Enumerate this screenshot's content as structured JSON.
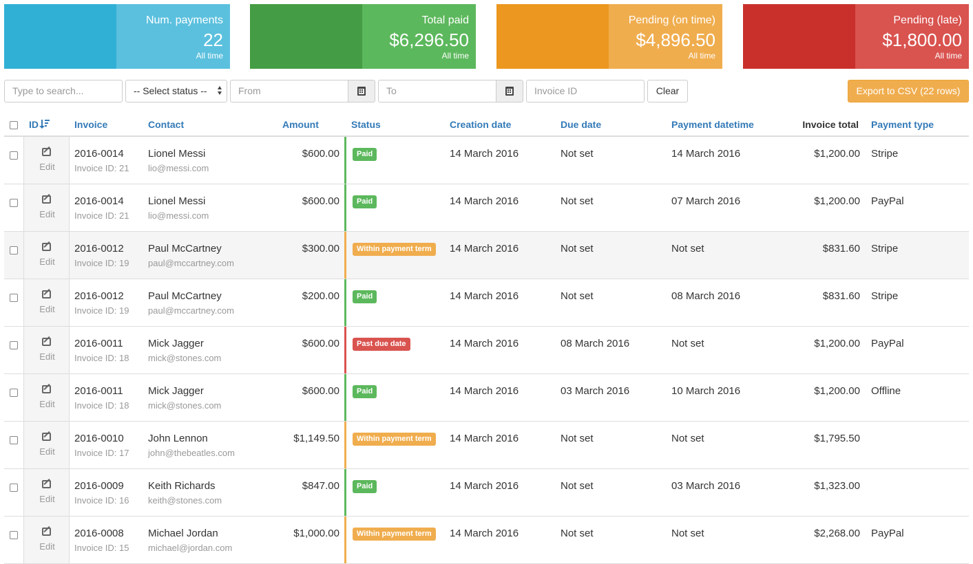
{
  "colors": {
    "blue": "#31b0d5",
    "blue_light": "#5bc0de",
    "green": "#449d44",
    "green_light": "#5cb85c",
    "orange": "#ec971f",
    "orange_light": "#f0ad4e",
    "red": "#c9302c",
    "red_light": "#d9534f"
  },
  "cards": [
    {
      "label": "Num. payments",
      "value": "22",
      "sub": "All time"
    },
    {
      "label": "Total paid",
      "value": "$6,296.50",
      "sub": "All time"
    },
    {
      "label": "Pending (on time)",
      "value": "$4,896.50",
      "sub": "All time"
    },
    {
      "label": "Pending (late)",
      "value": "$1,800.00",
      "sub": "All time"
    }
  ],
  "filters": {
    "search_placeholder": "Type to search...",
    "status_selected": "-- Select status --",
    "from_placeholder": "From",
    "to_placeholder": "To",
    "invoice_id_placeholder": "Invoice ID",
    "clear_label": "Clear",
    "export_label": "Export to CSV (22 rows)"
  },
  "columns": {
    "id": "ID",
    "invoice": "Invoice",
    "contact": "Contact",
    "amount": "Amount",
    "status": "Status",
    "creation": "Creation date",
    "due": "Due date",
    "payment_dt": "Payment datetime",
    "invoice_total": "Invoice total",
    "payment_type": "Payment type"
  },
  "edit_label": "Edit",
  "rows": [
    {
      "invoice": "2016-0014",
      "invoice_id": "Invoice ID: 21",
      "contact": "Lionel Messi",
      "email": "lio@messi.com",
      "amount": "$600.00",
      "status": "Paid",
      "status_kind": "paid",
      "creation": "14 March 2016",
      "due": "Not set",
      "payment_dt": "14 March 2016",
      "total": "$1,200.00",
      "type": "Stripe"
    },
    {
      "invoice": "2016-0014",
      "invoice_id": "Invoice ID: 21",
      "contact": "Lionel Messi",
      "email": "lio@messi.com",
      "amount": "$600.00",
      "status": "Paid",
      "status_kind": "paid",
      "creation": "14 March 2016",
      "due": "Not set",
      "payment_dt": "07 March 2016",
      "total": "$1,200.00",
      "type": "PayPal"
    },
    {
      "invoice": "2016-0012",
      "invoice_id": "Invoice ID: 19",
      "contact": "Paul McCartney",
      "email": "paul@mccartney.com",
      "amount": "$300.00",
      "status": "Within payment term",
      "status_kind": "pending",
      "creation": "14 March 2016",
      "due": "Not set",
      "payment_dt": "Not set",
      "total": "$831.60",
      "type": "Stripe"
    },
    {
      "invoice": "2016-0012",
      "invoice_id": "Invoice ID: 19",
      "contact": "Paul McCartney",
      "email": "paul@mccartney.com",
      "amount": "$200.00",
      "status": "Paid",
      "status_kind": "paid",
      "creation": "14 March 2016",
      "due": "Not set",
      "payment_dt": "08 March 2016",
      "total": "$831.60",
      "type": "Stripe"
    },
    {
      "invoice": "2016-0011",
      "invoice_id": "Invoice ID: 18",
      "contact": "Mick Jagger",
      "email": "mick@stones.com",
      "amount": "$600.00",
      "status": "Past due date",
      "status_kind": "late",
      "creation": "14 March 2016",
      "due": "08 March 2016",
      "payment_dt": "Not set",
      "total": "$1,200.00",
      "type": "PayPal"
    },
    {
      "invoice": "2016-0011",
      "invoice_id": "Invoice ID: 18",
      "contact": "Mick Jagger",
      "email": "mick@stones.com",
      "amount": "$600.00",
      "status": "Paid",
      "status_kind": "paid",
      "creation": "14 March 2016",
      "due": "03 March 2016",
      "payment_dt": "10 March 2016",
      "total": "$1,200.00",
      "type": "Offline"
    },
    {
      "invoice": "2016-0010",
      "invoice_id": "Invoice ID: 17",
      "contact": "John Lennon",
      "email": "john@thebeatles.com",
      "amount": "$1,149.50",
      "status": "Within payment term",
      "status_kind": "pending",
      "creation": "14 March 2016",
      "due": "Not set",
      "payment_dt": "Not set",
      "total": "$1,795.50",
      "type": ""
    },
    {
      "invoice": "2016-0009",
      "invoice_id": "Invoice ID: 16",
      "contact": "Keith Richards",
      "email": "keith@stones.com",
      "amount": "$847.00",
      "status": "Paid",
      "status_kind": "paid",
      "creation": "14 March 2016",
      "due": "Not set",
      "payment_dt": "03 March 2016",
      "total": "$1,323.00",
      "type": ""
    },
    {
      "invoice": "2016-0008",
      "invoice_id": "Invoice ID: 15",
      "contact": "Michael Jordan",
      "email": "michael@jordan.com",
      "amount": "$1,000.00",
      "status": "Within payment term",
      "status_kind": "pending",
      "creation": "14 March 2016",
      "due": "Not set",
      "payment_dt": "Not set",
      "total": "$2,268.00",
      "type": "PayPal"
    }
  ]
}
